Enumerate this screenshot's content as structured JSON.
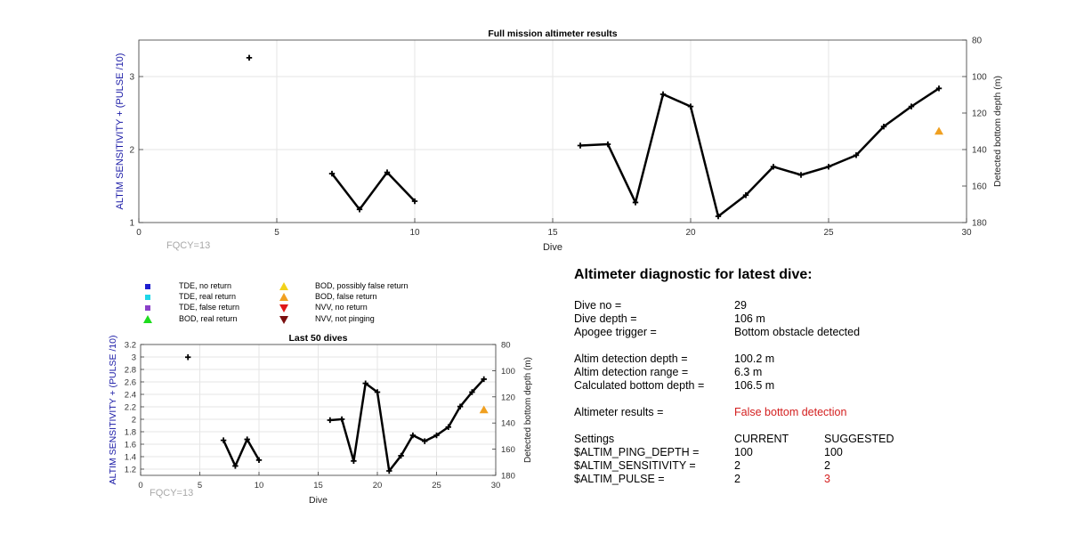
{
  "colors": {
    "left_axis": "#1a1aa6",
    "line": "#000000",
    "fqcy_text": "#a8a8a8",
    "alert": "#d42020",
    "grid": "#e6e6e6"
  },
  "chart_data": [
    {
      "type": "line",
      "title": "Full mission altimeter results",
      "xlabel": "Dive",
      "ylabel": "ALTIM SENSITIVITY + (PULSE /10)",
      "y2label": "Detected bottom depth (m)",
      "xlim": [
        0,
        30
      ],
      "ylim": [
        1,
        3.5
      ],
      "y2lim": [
        80,
        180
      ],
      "y2_reversed": true,
      "xticks": [
        "0",
        "5",
        "10",
        "15",
        "20",
        "25",
        "30"
      ],
      "yticks": [
        "1",
        "2",
        "3"
      ],
      "y2ticks": [
        "80",
        "100",
        "120",
        "140",
        "160",
        "180"
      ],
      "grid": true,
      "annotation": "FQCY=13",
      "series": [
        {
          "marker": "plus",
          "color": "#000000",
          "axis": "right",
          "points": [
            [
              4,
              89.7
            ],
            [
              7,
              153.2
            ],
            [
              8,
              172.8
            ],
            [
              9,
              152.5
            ],
            [
              10,
              168.3
            ],
            [
              16,
              137.8
            ],
            [
              17,
              137.1
            ],
            [
              18,
              169.0
            ],
            [
              19,
              109.7
            ],
            [
              20,
              116.4
            ],
            [
              21,
              176.6
            ],
            [
              22,
              165.0
            ],
            [
              23,
              149.4
            ],
            [
              24,
              153.9
            ],
            [
              25,
              149.4
            ],
            [
              26,
              143.1
            ],
            [
              27,
              127.4
            ],
            [
              28,
              116.4
            ],
            [
              29,
              106.5
            ]
          ]
        },
        {
          "marker": "triangle-up",
          "color": "#f0a020",
          "axis": "right",
          "points": [
            [
              29,
              130.0
            ]
          ]
        }
      ]
    },
    {
      "type": "line",
      "title": "Last 50 dives",
      "xlabel": "Dive",
      "ylabel": "ALTIM SENSITIVITY + (PULSE /10)",
      "y2label": "Detected bottom depth (m)",
      "xlim": [
        0,
        30
      ],
      "ylim": [
        1.1,
        3.2
      ],
      "y2lim": [
        80,
        180
      ],
      "y2_reversed": true,
      "xticks": [
        "0",
        "5",
        "10",
        "15",
        "20",
        "25",
        "30"
      ],
      "yticks": [
        "1.2",
        "1.4",
        "1.6",
        "1.8",
        "2",
        "2.2",
        "2.4",
        "2.6",
        "2.8",
        "3",
        "3.2"
      ],
      "y2ticks": [
        "80",
        "100",
        "120",
        "140",
        "160",
        "180"
      ],
      "grid": true,
      "annotation": "FQCY=13",
      "series": [
        {
          "marker": "plus",
          "color": "#000000",
          "axis": "right",
          "points": [
            [
              4,
              89.7
            ],
            [
              7,
              153.2
            ],
            [
              8,
              172.8
            ],
            [
              9,
              152.5
            ],
            [
              10,
              168.3
            ],
            [
              16,
              137.8
            ],
            [
              17,
              137.1
            ],
            [
              18,
              169.0
            ],
            [
              19,
              109.7
            ],
            [
              20,
              116.4
            ],
            [
              21,
              176.6
            ],
            [
              22,
              165.0
            ],
            [
              23,
              149.4
            ],
            [
              24,
              153.9
            ],
            [
              25,
              149.4
            ],
            [
              26,
              143.1
            ],
            [
              27,
              127.4
            ],
            [
              28,
              116.4
            ],
            [
              29,
              106.5
            ]
          ]
        },
        {
          "marker": "triangle-up",
          "color": "#f0a020",
          "axis": "right",
          "points": [
            [
              29,
              130.0
            ]
          ]
        }
      ]
    }
  ],
  "legend": {
    "items": [
      {
        "label": "TDE, no return",
        "shape": "square",
        "color": "#1f1fd0"
      },
      {
        "label": "TDE, real return",
        "shape": "square",
        "color": "#1ed6e8"
      },
      {
        "label": "TDE, false return",
        "shape": "square",
        "color": "#8a40c8"
      },
      {
        "label": "BOD, real return",
        "shape": "triangle-up",
        "color": "#1edc1e"
      },
      {
        "label": "BOD, possibly false return",
        "shape": "triangle-up",
        "color": "#f2d21a"
      },
      {
        "label": "BOD, false return",
        "shape": "triangle-up",
        "color": "#f0a020"
      },
      {
        "label": "NVV, no return",
        "shape": "triangle-down",
        "color": "#e01818"
      },
      {
        "label": "NVV, not pinging",
        "shape": "triangle-down",
        "color": "#7a0f0f"
      }
    ]
  },
  "diagnostic": {
    "title": "Altimeter diagnostic for latest dive:",
    "dive_no_label": "Dive no =",
    "dive_no_value": "29",
    "dive_depth_label": "Dive depth =",
    "dive_depth_value": "106 m",
    "apogee_label": "Apogee trigger =",
    "apogee_value": "Bottom obstacle detected",
    "det_depth_label": "Altim detection depth =",
    "det_depth_value": "100.2 m",
    "det_range_label": "Altim detection range =",
    "det_range_value": "6.3 m",
    "calc_depth_label": "Calculated bottom depth =",
    "calc_depth_value": "106.5 m",
    "results_label": "Altimeter results =",
    "results_value": "False bottom detection",
    "settings_label": "Settings",
    "current_label": "CURRENT",
    "suggested_label": "SUGGESTED",
    "ping_depth_label": "$ALTIM_PING_DEPTH =",
    "ping_depth_current": "100",
    "ping_depth_suggested": "100",
    "sensitivity_label": "$ALTIM_SENSITIVITY =",
    "sensitivity_current": "2",
    "sensitivity_suggested": "2",
    "pulse_label": "$ALTIM_PULSE =",
    "pulse_current": "2",
    "pulse_suggested": "3"
  }
}
